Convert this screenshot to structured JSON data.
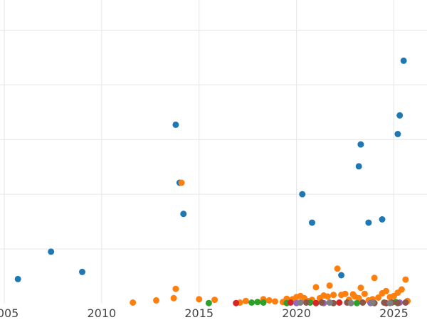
{
  "chart_data": {
    "type": "scatter",
    "title": "",
    "xlabel": "",
    "ylabel": "",
    "xlim": [
      2005.0,
      2026.7
    ],
    "ylim": [
      0,
      5.55
    ],
    "x_ticks": [
      2005,
      2010,
      2015,
      2020,
      2025
    ],
    "x_tick_labels": [
      "2005",
      "2010",
      "2015",
      "2020",
      "2025"
    ],
    "y_gridlines": [
      1,
      2,
      3,
      4,
      5
    ],
    "grid": true,
    "legend": "none",
    "series": [
      {
        "color": "#1f77b4",
        "points": [
          [
            2005.7,
            0.45
          ],
          [
            2007.4,
            0.95
          ],
          [
            2009.0,
            0.58
          ],
          [
            2013.8,
            3.27
          ],
          [
            2014.0,
            2.21
          ],
          [
            2014.2,
            1.64
          ],
          [
            2020.3,
            2.0
          ],
          [
            2020.8,
            1.48
          ],
          [
            2022.3,
            0.52
          ],
          [
            2023.2,
            2.51
          ],
          [
            2023.3,
            2.91
          ],
          [
            2023.7,
            1.48
          ],
          [
            2024.4,
            1.54
          ],
          [
            2025.2,
            3.1
          ],
          [
            2025.3,
            3.44
          ],
          [
            2025.5,
            4.44
          ]
        ]
      },
      {
        "color": "#ff7f0e",
        "points": [
          [
            2011.6,
            0.02
          ],
          [
            2012.8,
            0.06
          ],
          [
            2013.7,
            0.1
          ],
          [
            2013.8,
            0.27
          ],
          [
            2014.1,
            2.21
          ],
          [
            2015.0,
            0.08
          ],
          [
            2015.8,
            0.07
          ],
          [
            2017.1,
            0.02
          ],
          [
            2017.4,
            0.05
          ],
          [
            2018.0,
            0.03
          ],
          [
            2018.3,
            0.08
          ],
          [
            2018.6,
            0.06
          ],
          [
            2018.9,
            0.04
          ],
          [
            2019.3,
            0.03
          ],
          [
            2019.5,
            0.09
          ],
          [
            2019.8,
            0.08
          ],
          [
            2020.0,
            0.12
          ],
          [
            2020.2,
            0.14
          ],
          [
            2020.4,
            0.1
          ],
          [
            2020.6,
            0.05
          ],
          [
            2020.8,
            0.07
          ],
          [
            2021.0,
            0.3
          ],
          [
            2021.2,
            0.1
          ],
          [
            2021.4,
            0.15
          ],
          [
            2021.6,
            0.13
          ],
          [
            2021.7,
            0.33
          ],
          [
            2021.9,
            0.16
          ],
          [
            2022.1,
            0.64
          ],
          [
            2022.3,
            0.16
          ],
          [
            2022.5,
            0.18
          ],
          [
            2022.7,
            0.07
          ],
          [
            2022.9,
            0.17
          ],
          [
            2023.0,
            0.13
          ],
          [
            2023.2,
            0.1
          ],
          [
            2023.3,
            0.29
          ],
          [
            2023.5,
            0.18
          ],
          [
            2023.7,
            0.06
          ],
          [
            2023.9,
            0.08
          ],
          [
            2024.0,
            0.47
          ],
          [
            2024.2,
            0.11
          ],
          [
            2024.4,
            0.19
          ],
          [
            2024.6,
            0.23
          ],
          [
            2024.8,
            0.12
          ],
          [
            2025.0,
            0.14
          ],
          [
            2025.2,
            0.2
          ],
          [
            2025.4,
            0.26
          ],
          [
            2025.6,
            0.44
          ],
          [
            2025.7,
            0.05
          ]
        ]
      },
      {
        "color": "#2ca02c",
        "points": [
          [
            2015.5,
            0.01
          ],
          [
            2017.7,
            0.02
          ],
          [
            2018.0,
            0.03
          ],
          [
            2018.3,
            0.02
          ],
          [
            2019.5,
            0.01
          ],
          [
            2020.7,
            0.02
          ],
          [
            2023.1,
            0.01
          ],
          [
            2025.1,
            0.03
          ]
        ]
      },
      {
        "color": "#d62728",
        "points": [
          [
            2016.9,
            0.01
          ],
          [
            2019.7,
            0.02
          ],
          [
            2021.0,
            0.01
          ],
          [
            2022.2,
            0.02
          ],
          [
            2024.6,
            0.01
          ]
        ]
      },
      {
        "color": "#9467bd",
        "points": [
          [
            2020.0,
            0.01
          ],
          [
            2021.4,
            0.01
          ],
          [
            2023.8,
            0.01
          ],
          [
            2025.3,
            0.02
          ]
        ]
      },
      {
        "color": "#8c564b",
        "points": [
          [
            2020.5,
            0.02
          ],
          [
            2021.3,
            0.02
          ],
          [
            2021.9,
            0.01
          ],
          [
            2022.6,
            0.02
          ],
          [
            2023.4,
            0.02
          ],
          [
            2024.0,
            0.01
          ],
          [
            2024.5,
            0.02
          ],
          [
            2024.9,
            0.02
          ],
          [
            2025.2,
            0.01
          ],
          [
            2025.6,
            0.02
          ]
        ]
      },
      {
        "color": "#7f7f7f",
        "points": [
          [
            2020.2,
            0.02
          ],
          [
            2021.7,
            0.02
          ],
          [
            2022.8,
            0.01
          ],
          [
            2023.9,
            0.02
          ],
          [
            2024.8,
            0.01
          ]
        ]
      }
    ]
  }
}
